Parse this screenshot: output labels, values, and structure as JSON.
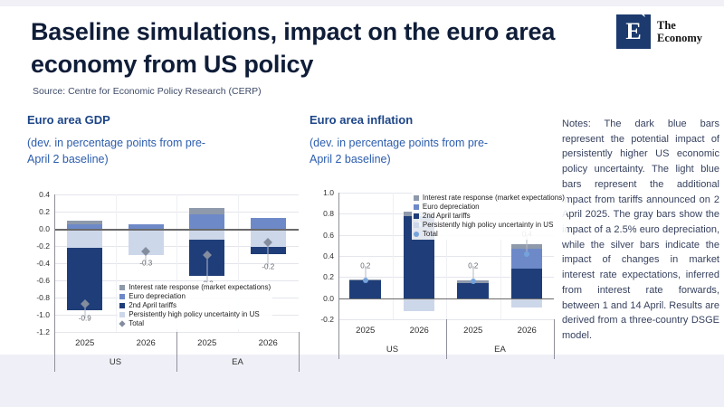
{
  "header": {
    "title": "Baseline simulations, impact on the euro area economy from US policy",
    "source": "Source: Centre for Economic Policy Research (CERP)",
    "logo": {
      "letter": "E",
      "tick": "ˋ",
      "line1": "The",
      "line2": "Economy"
    }
  },
  "notes": "Notes: The dark blue bars represent the potential impact of persistently higher US economic policy uncertainty. The light blue bars represent the additional impact from tariffs announced on 2 April 2025. The gray bars show the impact of a 2.5% euro depreciation, while the silver bars indicate the impact of changes in market interest rate expectations, inferred from interest rate forwards, between 1 and 14 April. Results are derived from a three-country DSGE model.",
  "chart_data": [
    {
      "type": "bar",
      "title": "Euro area GDP",
      "subtitle": "(dev. in percentage points from pre-April 2 baseline)",
      "ylim": [
        -1.2,
        0.4
      ],
      "yticks": [
        0.4,
        0.2,
        0.0,
        -0.2,
        -0.4,
        -0.6,
        -0.8,
        -1.0,
        -1.2
      ],
      "grid": true,
      "categories": [
        "2025",
        "2026",
        "2025",
        "2026"
      ],
      "groups": [
        {
          "label": "US",
          "span": [
            0,
            1
          ]
        },
        {
          "label": "EA",
          "span": [
            2,
            3
          ]
        }
      ],
      "stack_order": [
        "uncertainty",
        "tariffs",
        "euro",
        "interest"
      ],
      "bar_width_pct": 58,
      "series": [
        {
          "key": "interest",
          "name": "Interest rate response (market expectations)",
          "color": "#8e99ab",
          "values": [
            0.05,
            0,
            0.07,
            0
          ]
        },
        {
          "key": "euro",
          "name": "Euro depreciation",
          "color": "#6e89c8",
          "values": [
            0.05,
            0.05,
            0.17,
            0.13
          ]
        },
        {
          "key": "tariffs",
          "name": "2nd April tariffs",
          "color": "#1f3e79",
          "values": [
            -0.73,
            0,
            -0.42,
            -0.09
          ]
        },
        {
          "key": "uncertainty",
          "name": "Persistently high policy uncertainty in US",
          "color": "#cdd7ea",
          "values": [
            -0.22,
            -0.31,
            -0.13,
            -0.21
          ]
        }
      ],
      "totals": {
        "legend_label": "Total",
        "marker": "diamond",
        "marker_color": "#848d9e",
        "values": [
          -0.87,
          -0.26,
          -0.3,
          -0.16
        ],
        "labels": [
          "-0.9",
          "-0.3",
          "-0.3",
          "-0.2"
        ],
        "label_pos": [
          -1.04,
          -0.4,
          -0.64,
          -0.44
        ]
      },
      "legend_pos": {
        "left": "26%",
        "top": "64%"
      }
    },
    {
      "type": "bar",
      "title": "Euro area inflation",
      "subtitle": "(dev. in percentage points from pre-April 2 baseline)",
      "ylim": [
        -0.2,
        1.0
      ],
      "yticks": [
        1.0,
        0.8,
        0.6,
        0.4,
        0.2,
        0.0,
        -0.2
      ],
      "grid": true,
      "categories": [
        "2025",
        "2026",
        "2025",
        "2026"
      ],
      "groups": [
        {
          "label": "US",
          "span": [
            0,
            1
          ]
        },
        {
          "label": "EA",
          "span": [
            2,
            3
          ]
        }
      ],
      "stack_order": [
        "uncertainty",
        "tariffs",
        "euro",
        "interest"
      ],
      "bar_width_pct": 58,
      "series": [
        {
          "key": "interest",
          "name": "Interest rate response (market expectations)",
          "color": "#8e99ab",
          "values": [
            0.01,
            0.04,
            0.03,
            0.04
          ]
        },
        {
          "key": "euro",
          "name": "Euro depreciation",
          "color": "#6e89c8",
          "values": [
            0,
            0,
            0,
            0.19
          ]
        },
        {
          "key": "tariffs",
          "name": "2nd April tariffs",
          "color": "#1f3e79",
          "values": [
            0.17,
            0.78,
            0.14,
            0.28
          ]
        },
        {
          "key": "uncertainty",
          "name": "Persistently high policy uncertainty in US",
          "color": "#cdd7ea",
          "values": [
            0,
            -0.12,
            0,
            -0.09
          ]
        }
      ],
      "totals": {
        "legend_label": "Total",
        "marker": "dot",
        "marker_color": "#74a3dc",
        "values": [
          0.17,
          0.7,
          0.16,
          0.42
        ],
        "labels": [
          "0.2",
          "0.7",
          "0.2",
          "0.4"
        ],
        "label_pos": [
          0.31,
          0.9,
          0.31,
          0.61
        ]
      },
      "legend_pos": {
        "left": "34%",
        "top": "0%"
      }
    }
  ]
}
